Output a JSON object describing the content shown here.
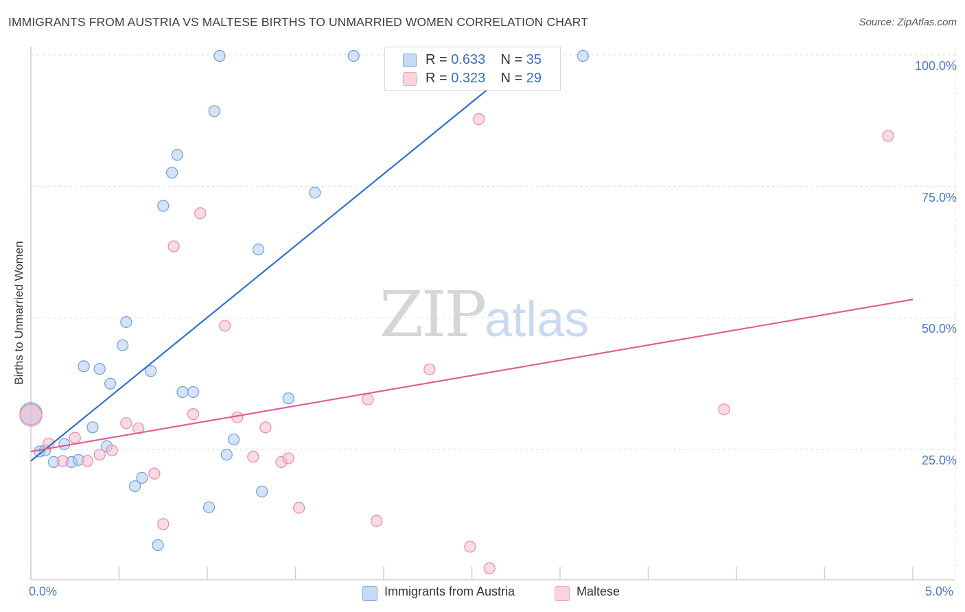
{
  "title": "IMMIGRANTS FROM AUSTRIA VS MALTESE BIRTHS TO UNMARRIED WOMEN CORRELATION CHART",
  "source": "Source: ZipAtlas.com",
  "watermark": {
    "zip": "ZIP",
    "atlas": "atlas"
  },
  "legend_top": [
    {
      "r_label": "R = ",
      "r_value": "0.633",
      "n_label": "N = ",
      "n_value": "35",
      "color": "#a9c8ef"
    },
    {
      "r_label": "R = ",
      "r_value": "0.323",
      "n_label": "N = ",
      "n_value": "29",
      "color": "#f6b8ca"
    }
  ],
  "chart_data": {
    "type": "scatter",
    "title": "IMMIGRANTS FROM AUSTRIA VS MALTESE BIRTHS TO UNMARRIED WOMEN CORRELATION CHART",
    "xlabel": "",
    "ylabel": "Births to Unmarried Women",
    "xlim": [
      0,
      5
    ],
    "ylim": [
      0,
      102
    ],
    "x_tick_labels": [
      "0.0%",
      "5.0%"
    ],
    "y_tick_labels": [
      "25.0%",
      "50.0%",
      "75.0%",
      "100.0%"
    ],
    "y_ticks": [
      25,
      50,
      75,
      100
    ],
    "grid": true,
    "legend_position": "bottom",
    "series": [
      {
        "name": "Immigrants from Austria",
        "color": "#a9c8ef",
        "stroke": "#6f9fdc",
        "line_color": "#2f6fce",
        "trend": {
          "x": [
            0.0,
            2.83
          ],
          "y": [
            22.8,
            100.0
          ]
        },
        "points": [
          [
            0.0,
            31.8,
            "large"
          ],
          [
            0.05,
            24.6
          ],
          [
            0.08,
            24.8
          ],
          [
            0.13,
            22.6
          ],
          [
            0.19,
            26.0
          ],
          [
            0.23,
            22.6
          ],
          [
            0.27,
            23.0
          ],
          [
            0.3,
            40.8
          ],
          [
            0.35,
            29.2
          ],
          [
            0.39,
            40.3
          ],
          [
            0.43,
            25.6
          ],
          [
            0.45,
            37.5
          ],
          [
            0.52,
            44.8
          ],
          [
            0.54,
            49.2
          ],
          [
            0.59,
            18.0
          ],
          [
            0.63,
            19.6
          ],
          [
            0.68,
            39.9
          ],
          [
            0.72,
            6.8
          ],
          [
            0.75,
            71.3
          ],
          [
            0.8,
            77.6
          ],
          [
            0.83,
            81.0
          ],
          [
            0.86,
            35.9
          ],
          [
            0.92,
            35.9
          ],
          [
            1.01,
            14.0
          ],
          [
            1.04,
            89.3
          ],
          [
            1.07,
            99.8
          ],
          [
            1.11,
            24.0
          ],
          [
            1.15,
            26.9
          ],
          [
            1.29,
            63.0
          ],
          [
            1.31,
            17.0
          ],
          [
            1.46,
            34.7
          ],
          [
            1.61,
            73.8
          ],
          [
            1.83,
            99.8
          ],
          [
            3.13,
            99.8
          ],
          [
            2.27,
            99.8
          ]
        ]
      },
      {
        "name": "Maltese",
        "color": "#f6b8ca",
        "stroke": "#e98aa6",
        "line_color": "#e0608c",
        "trend": {
          "x": [
            0.0,
            5.0
          ],
          "y": [
            24.6,
            53.5
          ]
        },
        "points": [
          [
            0.0,
            31.5,
            "large"
          ],
          [
            0.1,
            26.1
          ],
          [
            0.18,
            22.8
          ],
          [
            0.25,
            27.2
          ],
          [
            0.32,
            22.8
          ],
          [
            0.39,
            24.0
          ],
          [
            0.46,
            24.8
          ],
          [
            0.54,
            30.0
          ],
          [
            0.61,
            29.0
          ],
          [
            0.7,
            20.4
          ],
          [
            0.75,
            10.8
          ],
          [
            0.81,
            63.6
          ],
          [
            0.92,
            31.7
          ],
          [
            0.96,
            69.9
          ],
          [
            1.1,
            48.5
          ],
          [
            1.17,
            31.1
          ],
          [
            1.26,
            23.6
          ],
          [
            1.33,
            29.2
          ],
          [
            1.42,
            22.6
          ],
          [
            1.46,
            23.3
          ],
          [
            1.52,
            13.9
          ],
          [
            1.91,
            34.5
          ],
          [
            1.96,
            11.4
          ],
          [
            2.26,
            40.2
          ],
          [
            2.49,
            6.5
          ],
          [
            2.54,
            87.8
          ],
          [
            2.6,
            2.4
          ],
          [
            3.93,
            32.6
          ],
          [
            4.86,
            84.6
          ]
        ]
      }
    ]
  }
}
